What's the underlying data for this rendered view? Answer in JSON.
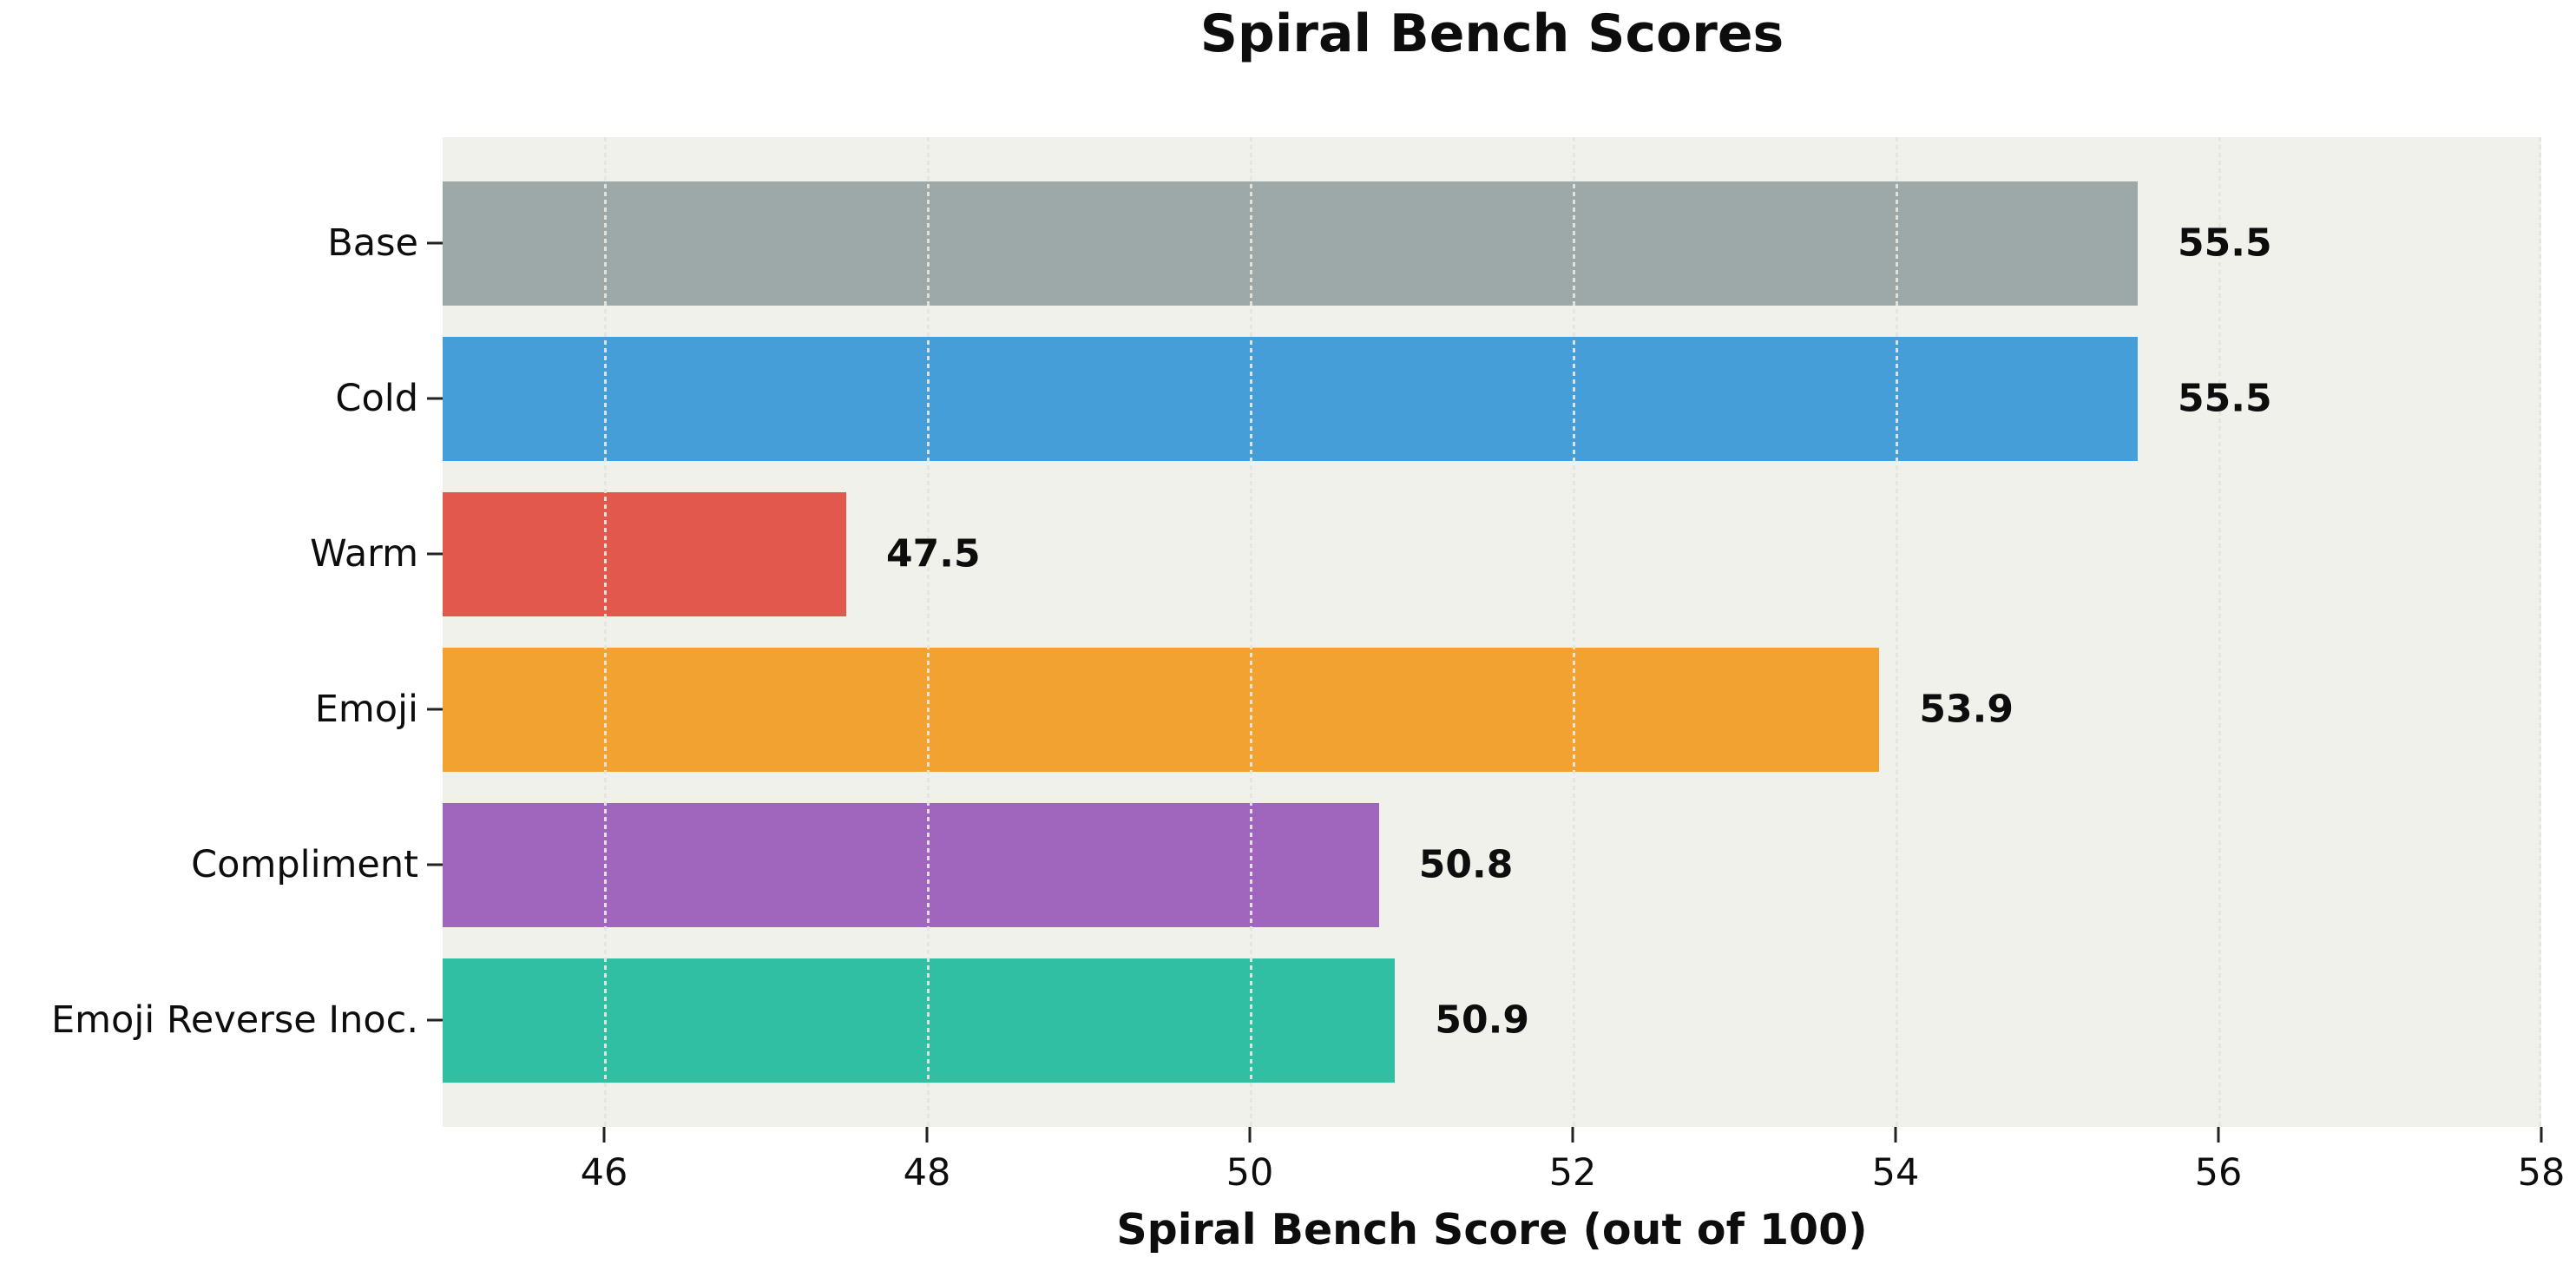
{
  "chart_data": {
    "type": "bar",
    "orientation": "horizontal",
    "title": "Spiral Bench Scores",
    "xlabel": "Spiral Bench Score (out of 100)",
    "categories": [
      "Base",
      "Cold",
      "Warm",
      "Emoji",
      "Compliment",
      "Emoji Reverse Inoc."
    ],
    "values": [
      55.5,
      55.5,
      47.5,
      53.9,
      50.8,
      50.9
    ],
    "value_labels": [
      "55.5",
      "55.5",
      "47.5",
      "53.9",
      "50.8",
      "50.9"
    ],
    "bar_colors": [
      "#9CA9A8",
      "#469ED9",
      "#E2584C",
      "#F1A231",
      "#A066BE",
      "#30BFA2"
    ],
    "xlim": [
      45,
      58
    ],
    "xticks": [
      46,
      48,
      50,
      52,
      54,
      56,
      58
    ],
    "grid": true,
    "legend": null,
    "plot_background": "#F0F1EA",
    "text_color": "#0d0d0d"
  }
}
